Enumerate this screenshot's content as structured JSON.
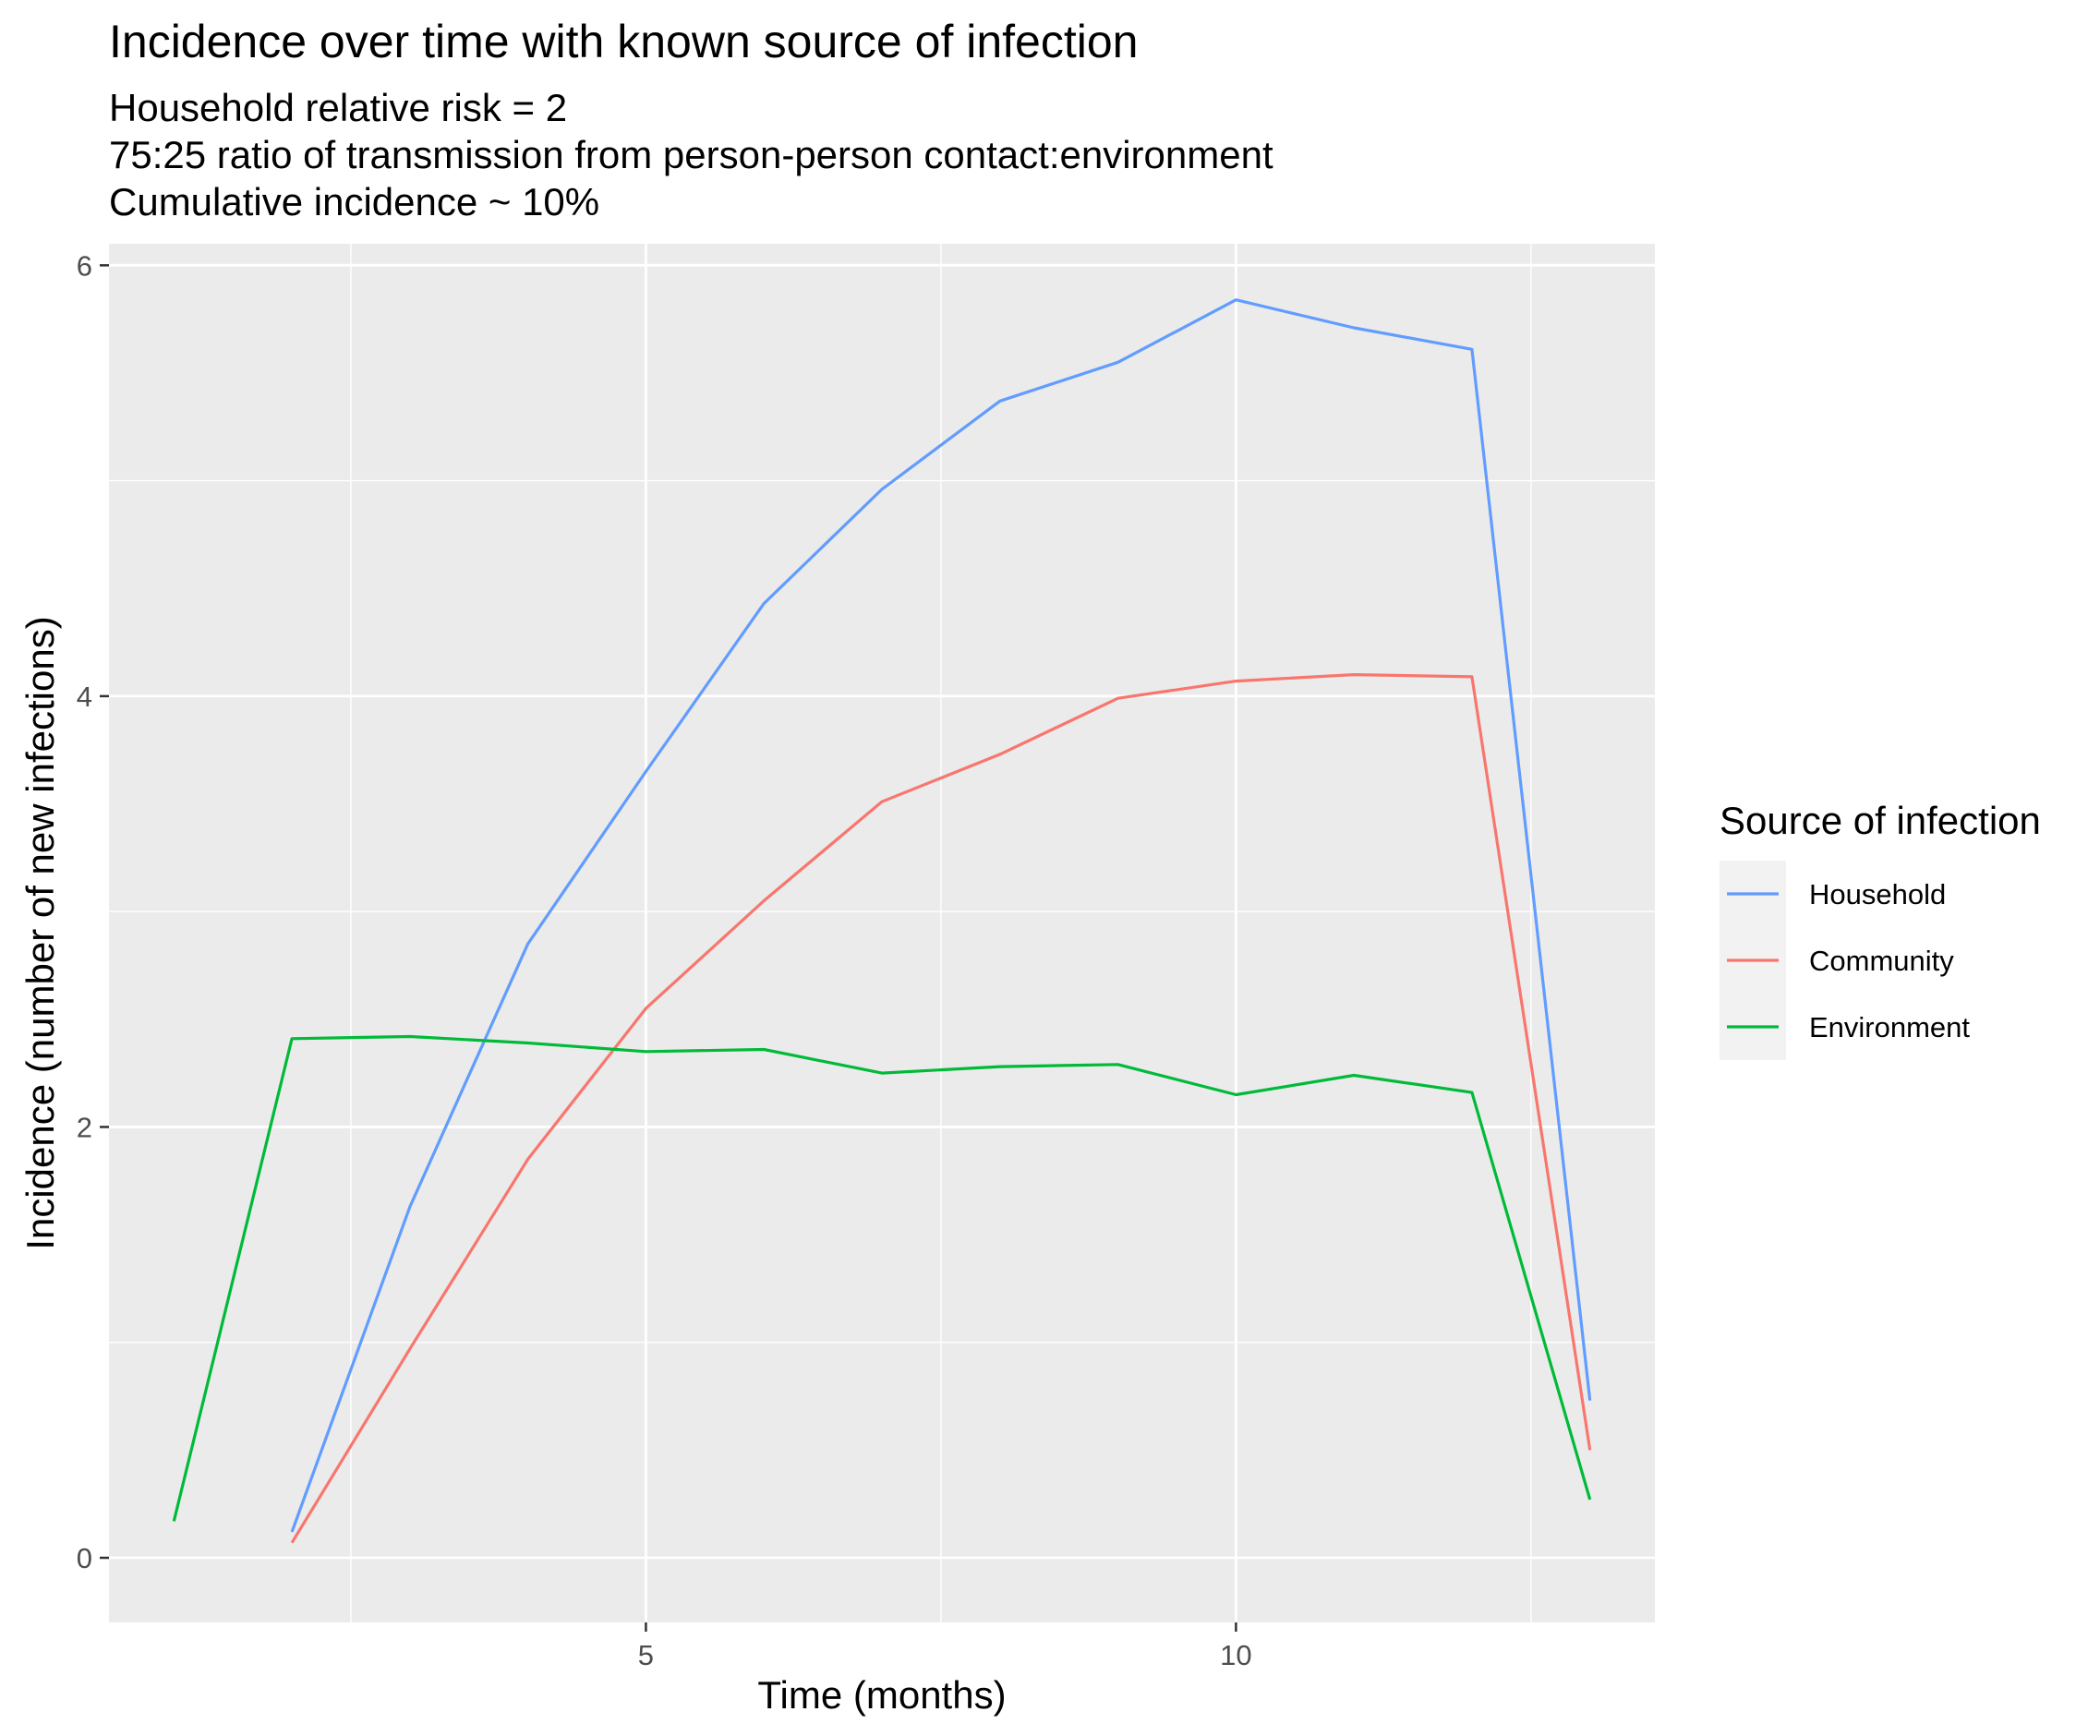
{
  "chart_data": {
    "type": "line",
    "title": "Incidence over time with known source of infection",
    "subtitle": [
      "Household relative risk = 2",
      "75:25 ratio of transmission from person-person contact:environment",
      "Cumulative incidence ~ 10%"
    ],
    "xlabel": "Time (months)",
    "ylabel": "Incidence (number of new infections)",
    "xlim": [
      0.45,
      13.55
    ],
    "ylim": [
      -0.3,
      6.1
    ],
    "x_ticks": [
      5,
      10
    ],
    "y_ticks": [
      0,
      2,
      4,
      6
    ],
    "x_minor_ticks": [
      2.5,
      7.5,
      12.5
    ],
    "y_minor_ticks": [
      1,
      3,
      5
    ],
    "grid": true,
    "legend": {
      "title": "Source of infection",
      "position": "right"
    },
    "series": [
      {
        "name": "Household",
        "color": "#619CFF",
        "x": [
          2,
          3,
          4,
          5,
          6,
          7,
          8,
          9,
          10,
          11,
          12,
          13
        ],
        "y": [
          0.12,
          1.63,
          2.85,
          3.65,
          4.43,
          4.96,
          5.37,
          5.55,
          5.84,
          5.71,
          5.61,
          0.73
        ]
      },
      {
        "name": "Community",
        "color": "#F8766D",
        "x": [
          2,
          3,
          4,
          5,
          6,
          7,
          8,
          9,
          10,
          11,
          12,
          13
        ],
        "y": [
          0.07,
          0.97,
          1.85,
          2.55,
          3.05,
          3.51,
          3.73,
          3.99,
          4.07,
          4.1,
          4.09,
          0.5
        ]
      },
      {
        "name": "Environment",
        "color": "#00BA38",
        "x": [
          1,
          2,
          3,
          4,
          5,
          6,
          7,
          8,
          9,
          10,
          11,
          12,
          13
        ],
        "y": [
          0.17,
          2.41,
          2.42,
          2.39,
          2.35,
          2.36,
          2.25,
          2.28,
          2.29,
          2.15,
          2.24,
          2.16,
          0.27
        ]
      }
    ]
  }
}
